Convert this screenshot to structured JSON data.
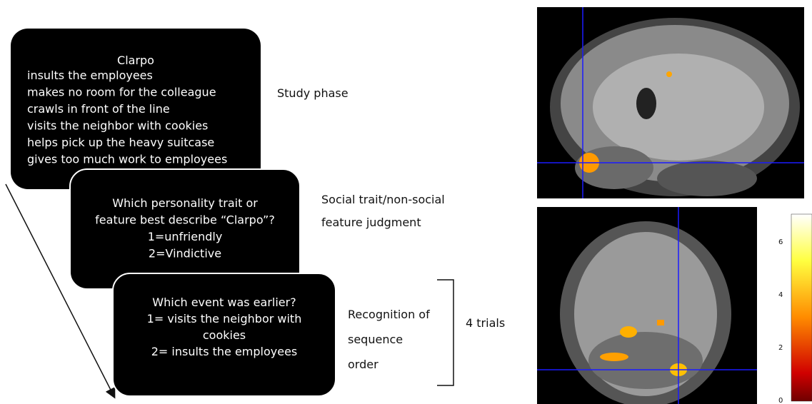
{
  "study_box": {
    "title": "Clarpo",
    "lines": [
      "insults the employees",
      "makes no room for the colleague",
      "crawls in front of the line",
      "visits the neighbor with cookies",
      "helps pick up the heavy suitcase",
      "gives too much work to employees"
    ]
  },
  "judgment_box": {
    "lines": [
      "Which personality trait or",
      "feature best describe “Clarpo”?",
      "1=unfriendly",
      "2=Vindictive"
    ]
  },
  "recognition_box": {
    "lines": [
      "Which event was earlier?",
      "1= visits the neighbor with",
      "cookies",
      "2= insults the employees"
    ]
  },
  "labels": {
    "study": "Study phase",
    "judgment": [
      "Social trait/non-social",
      "feature judgment"
    ],
    "recognition": [
      "Recognition of",
      "sequence",
      "order"
    ],
    "trials": "4 trials"
  },
  "colorbar": {
    "ticks": [
      0,
      2,
      4,
      6
    ]
  }
}
